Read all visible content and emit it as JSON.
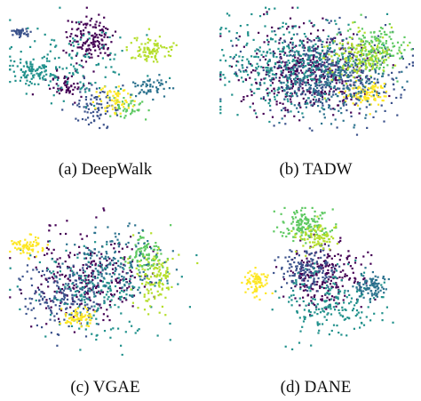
{
  "figure": {
    "panels": [
      {
        "letter": "(a)",
        "method": "DeepWalk"
      },
      {
        "letter": "(b)",
        "method": "TADW"
      },
      {
        "letter": "(c)",
        "method": "VGAE"
      },
      {
        "letter": "(d)",
        "method": "DANE"
      }
    ]
  },
  "colors": {
    "classes": [
      "#440154",
      "#3b528b",
      "#21918c",
      "#5ec962",
      "#b5de2b",
      "#fde725",
      "#2c728e"
    ]
  },
  "chart_data": [
    {
      "type": "scatter",
      "panel": "(a) DeepWalk",
      "grid": false,
      "legend": "none",
      "clusters": [
        {
          "class": 0,
          "cx": 0.42,
          "cy": 0.22,
          "sx": 0.06,
          "sy": 0.08,
          "n": 140
        },
        {
          "class": 0,
          "cx": 0.3,
          "cy": 0.55,
          "sx": 0.05,
          "sy": 0.05,
          "n": 60
        },
        {
          "class": 1,
          "cx": 0.06,
          "cy": 0.18,
          "sx": 0.02,
          "sy": 0.015,
          "n": 40
        },
        {
          "class": 1,
          "cx": 0.45,
          "cy": 0.7,
          "sx": 0.06,
          "sy": 0.06,
          "n": 80
        },
        {
          "class": 2,
          "cx": 0.12,
          "cy": 0.44,
          "sx": 0.06,
          "sy": 0.05,
          "n": 90
        },
        {
          "class": 2,
          "cx": 0.35,
          "cy": 0.4,
          "sx": 0.15,
          "sy": 0.12,
          "n": 130
        },
        {
          "class": 3,
          "cx": 0.6,
          "cy": 0.7,
          "sx": 0.05,
          "sy": 0.04,
          "n": 40
        },
        {
          "class": 4,
          "cx": 0.73,
          "cy": 0.3,
          "sx": 0.06,
          "sy": 0.05,
          "n": 90
        },
        {
          "class": 5,
          "cx": 0.55,
          "cy": 0.65,
          "sx": 0.04,
          "sy": 0.05,
          "n": 60
        },
        {
          "class": 6,
          "cx": 0.7,
          "cy": 0.55,
          "sx": 0.06,
          "sy": 0.04,
          "n": 50
        }
      ]
    },
    {
      "type": "scatter",
      "panel": "(b) TADW",
      "grid": false,
      "legend": "none",
      "clusters": [
        {
          "class": 0,
          "cx": 0.45,
          "cy": 0.45,
          "sx": 0.16,
          "sy": 0.14,
          "n": 420
        },
        {
          "class": 1,
          "cx": 0.55,
          "cy": 0.45,
          "sx": 0.18,
          "sy": 0.15,
          "n": 360
        },
        {
          "class": 2,
          "cx": 0.35,
          "cy": 0.4,
          "sx": 0.18,
          "sy": 0.16,
          "n": 360
        },
        {
          "class": 3,
          "cx": 0.8,
          "cy": 0.3,
          "sx": 0.07,
          "sy": 0.08,
          "n": 160
        },
        {
          "class": 4,
          "cx": 0.7,
          "cy": 0.35,
          "sx": 0.08,
          "sy": 0.08,
          "n": 140
        },
        {
          "class": 5,
          "cx": 0.75,
          "cy": 0.6,
          "sx": 0.06,
          "sy": 0.04,
          "n": 90
        },
        {
          "class": 6,
          "cx": 0.6,
          "cy": 0.55,
          "sx": 0.14,
          "sy": 0.12,
          "n": 220
        }
      ]
    },
    {
      "type": "scatter",
      "panel": "(c) VGAE",
      "grid": false,
      "legend": "none",
      "clusters": [
        {
          "class": 0,
          "cx": 0.4,
          "cy": 0.45,
          "sx": 0.14,
          "sy": 0.14,
          "n": 260
        },
        {
          "class": 1,
          "cx": 0.3,
          "cy": 0.55,
          "sx": 0.12,
          "sy": 0.1,
          "n": 180
        },
        {
          "class": 2,
          "cx": 0.45,
          "cy": 0.55,
          "sx": 0.16,
          "sy": 0.14,
          "n": 200
        },
        {
          "class": 3,
          "cx": 0.7,
          "cy": 0.3,
          "sx": 0.05,
          "sy": 0.06,
          "n": 90
        },
        {
          "class": 4,
          "cx": 0.75,
          "cy": 0.45,
          "sx": 0.05,
          "sy": 0.1,
          "n": 120
        },
        {
          "class": 5,
          "cx": 0.1,
          "cy": 0.25,
          "sx": 0.04,
          "sy": 0.03,
          "n": 70
        },
        {
          "class": 5,
          "cx": 0.35,
          "cy": 0.7,
          "sx": 0.04,
          "sy": 0.03,
          "n": 60
        },
        {
          "class": 6,
          "cx": 0.55,
          "cy": 0.35,
          "sx": 0.12,
          "sy": 0.1,
          "n": 140
        }
      ]
    },
    {
      "type": "scatter",
      "panel": "(d) DANE",
      "grid": false,
      "legend": "none",
      "clusters": [
        {
          "class": 0,
          "cx": 0.55,
          "cy": 0.45,
          "sx": 0.1,
          "sy": 0.1,
          "n": 220
        },
        {
          "class": 1,
          "cx": 0.45,
          "cy": 0.4,
          "sx": 0.07,
          "sy": 0.07,
          "n": 140
        },
        {
          "class": 2,
          "cx": 0.55,
          "cy": 0.6,
          "sx": 0.14,
          "sy": 0.1,
          "n": 200
        },
        {
          "class": 3,
          "cx": 0.45,
          "cy": 0.12,
          "sx": 0.07,
          "sy": 0.05,
          "n": 140
        },
        {
          "class": 4,
          "cx": 0.5,
          "cy": 0.2,
          "sx": 0.05,
          "sy": 0.04,
          "n": 80
        },
        {
          "class": 5,
          "cx": 0.2,
          "cy": 0.48,
          "sx": 0.03,
          "sy": 0.04,
          "n": 80
        },
        {
          "class": 6,
          "cx": 0.78,
          "cy": 0.5,
          "sx": 0.04,
          "sy": 0.04,
          "n": 90
        }
      ]
    }
  ]
}
